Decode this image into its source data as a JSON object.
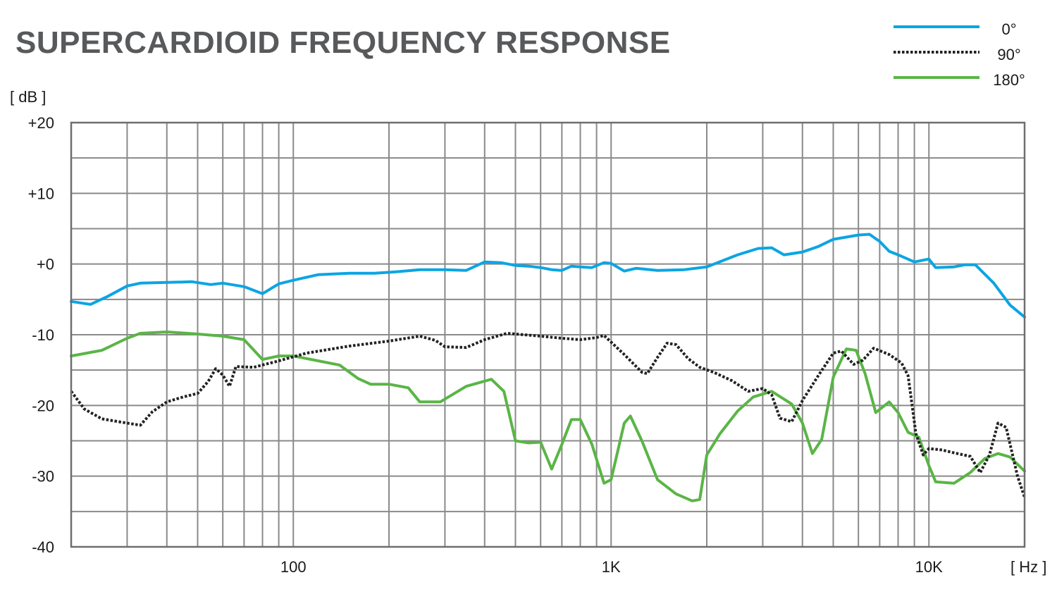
{
  "title": "SUPERCARDIOID FREQUENCY RESPONSE",
  "chart_data": {
    "type": "line",
    "title": "SUPERCARDIOID FREQUENCY RESPONSE",
    "ylabel": "[ dB ]",
    "xlabel": "[ Hz ]",
    "x_scale": "log",
    "xlim": [
      20,
      20000
    ],
    "ylim": [
      -40,
      20
    ],
    "grid": true,
    "legend_position": "top-right",
    "y_ticks": [
      {
        "value": 20,
        "label": "+20"
      },
      {
        "value": 10,
        "label": "+10"
      },
      {
        "value": 0,
        "label": "+0"
      },
      {
        "value": -10,
        "label": "-10"
      },
      {
        "value": -20,
        "label": "-20"
      },
      {
        "value": -30,
        "label": "-30"
      },
      {
        "value": -40,
        "label": "-40"
      }
    ],
    "x_ticks": [
      {
        "value": 100,
        "label": "100"
      },
      {
        "value": 1000,
        "label": "1K"
      },
      {
        "value": 10000,
        "label": "10K"
      }
    ],
    "series": [
      {
        "name": "0°",
        "color": "#0ba5e3",
        "dash": "solid",
        "points": [
          [
            20,
            -5.3
          ],
          [
            23,
            -5.7
          ],
          [
            26,
            -4.6
          ],
          [
            30,
            -3.1
          ],
          [
            33,
            -2.7
          ],
          [
            40,
            -2.6
          ],
          [
            48,
            -2.5
          ],
          [
            55,
            -2.9
          ],
          [
            60,
            -2.7
          ],
          [
            70,
            -3.2
          ],
          [
            80,
            -4.2
          ],
          [
            90,
            -2.8
          ],
          [
            100,
            -2.3
          ],
          [
            120,
            -1.5
          ],
          [
            150,
            -1.3
          ],
          [
            180,
            -1.3
          ],
          [
            210,
            -1.1
          ],
          [
            250,
            -0.8
          ],
          [
            300,
            -0.8
          ],
          [
            350,
            -0.9
          ],
          [
            400,
            0.3
          ],
          [
            450,
            0.2
          ],
          [
            500,
            -0.2
          ],
          [
            550,
            -0.3
          ],
          [
            600,
            -0.5
          ],
          [
            650,
            -0.8
          ],
          [
            700,
            -0.9
          ],
          [
            750,
            -0.3
          ],
          [
            800,
            -0.4
          ],
          [
            870,
            -0.5
          ],
          [
            950,
            0.2
          ],
          [
            1000,
            0.1
          ],
          [
            1100,
            -1.0
          ],
          [
            1200,
            -0.6
          ],
          [
            1400,
            -0.9
          ],
          [
            1700,
            -0.8
          ],
          [
            2000,
            -0.4
          ],
          [
            2500,
            1.3
          ],
          [
            2900,
            2.2
          ],
          [
            3200,
            2.3
          ],
          [
            3500,
            1.3
          ],
          [
            4000,
            1.7
          ],
          [
            4500,
            2.5
          ],
          [
            5000,
            3.5
          ],
          [
            6000,
            4.1
          ],
          [
            6500,
            4.2
          ],
          [
            7000,
            3.2
          ],
          [
            7500,
            1.8
          ],
          [
            8000,
            1.3
          ],
          [
            9000,
            0.3
          ],
          [
            10000,
            0.7
          ],
          [
            10500,
            -0.5
          ],
          [
            12000,
            -0.4
          ],
          [
            13000,
            -0.1
          ],
          [
            14000,
            -0.1
          ],
          [
            16000,
            -2.7
          ],
          [
            18000,
            -5.8
          ],
          [
            20000,
            -7.5
          ]
        ]
      },
      {
        "name": "90°",
        "color": "#222222",
        "dash": "dotted",
        "points": [
          [
            20,
            -18.0
          ],
          [
            22,
            -20.5
          ],
          [
            25,
            -21.9
          ],
          [
            30,
            -22.5
          ],
          [
            33,
            -22.8
          ],
          [
            36,
            -20.9
          ],
          [
            40,
            -19.5
          ],
          [
            45,
            -18.8
          ],
          [
            50,
            -18.3
          ],
          [
            54,
            -16.6
          ],
          [
            57,
            -14.8
          ],
          [
            60,
            -15.7
          ],
          [
            63,
            -17.3
          ],
          [
            66,
            -14.5
          ],
          [
            75,
            -14.6
          ],
          [
            90,
            -13.7
          ],
          [
            110,
            -12.6
          ],
          [
            150,
            -11.6
          ],
          [
            200,
            -10.9
          ],
          [
            250,
            -10.2
          ],
          [
            280,
            -10.8
          ],
          [
            300,
            -11.7
          ],
          [
            350,
            -11.8
          ],
          [
            400,
            -10.7
          ],
          [
            470,
            -9.8
          ],
          [
            600,
            -10.2
          ],
          [
            700,
            -10.5
          ],
          [
            800,
            -10.7
          ],
          [
            900,
            -10.4
          ],
          [
            950,
            -10.1
          ],
          [
            1100,
            -12.8
          ],
          [
            1250,
            -15.3
          ],
          [
            1300,
            -15.5
          ],
          [
            1400,
            -13.2
          ],
          [
            1500,
            -11.2
          ],
          [
            1600,
            -11.4
          ],
          [
            1750,
            -13.4
          ],
          [
            1900,
            -14.6
          ],
          [
            2100,
            -15.3
          ],
          [
            2400,
            -16.5
          ],
          [
            2700,
            -18.0
          ],
          [
            3000,
            -17.6
          ],
          [
            3200,
            -18.5
          ],
          [
            3400,
            -21.8
          ],
          [
            3700,
            -22.3
          ],
          [
            4000,
            -19.3
          ],
          [
            4500,
            -15.7
          ],
          [
            5000,
            -12.6
          ],
          [
            5300,
            -12.3
          ],
          [
            5800,
            -14.2
          ],
          [
            6200,
            -13.6
          ],
          [
            6700,
            -11.9
          ],
          [
            7500,
            -12.8
          ],
          [
            8200,
            -14.0
          ],
          [
            8600,
            -15.8
          ],
          [
            9100,
            -24.0
          ],
          [
            9600,
            -27.0
          ],
          [
            10000,
            -26.1
          ],
          [
            11000,
            -26.3
          ],
          [
            12000,
            -26.7
          ],
          [
            13500,
            -27.2
          ],
          [
            14500,
            -29.5
          ],
          [
            15500,
            -27.0
          ],
          [
            16500,
            -22.5
          ],
          [
            17500,
            -23.1
          ],
          [
            19000,
            -30.0
          ],
          [
            20000,
            -33.0
          ]
        ]
      },
      {
        "name": "180°",
        "color": "#5ab546",
        "dash": "solid",
        "points": [
          [
            20,
            -13.0
          ],
          [
            25,
            -12.2
          ],
          [
            30,
            -10.5
          ],
          [
            33,
            -9.8
          ],
          [
            40,
            -9.6
          ],
          [
            50,
            -9.9
          ],
          [
            60,
            -10.2
          ],
          [
            70,
            -10.7
          ],
          [
            80,
            -13.5
          ],
          [
            90,
            -13.0
          ],
          [
            100,
            -13.0
          ],
          [
            120,
            -13.7
          ],
          [
            140,
            -14.3
          ],
          [
            160,
            -16.2
          ],
          [
            175,
            -17.0
          ],
          [
            200,
            -17.0
          ],
          [
            230,
            -17.5
          ],
          [
            250,
            -19.5
          ],
          [
            290,
            -19.5
          ],
          [
            350,
            -17.3
          ],
          [
            420,
            -16.3
          ],
          [
            460,
            -18.0
          ],
          [
            500,
            -25.0
          ],
          [
            550,
            -25.3
          ],
          [
            600,
            -25.2
          ],
          [
            650,
            -29.0
          ],
          [
            700,
            -25.5
          ],
          [
            750,
            -22.0
          ],
          [
            800,
            -22.0
          ],
          [
            870,
            -25.5
          ],
          [
            950,
            -31.0
          ],
          [
            1000,
            -30.5
          ],
          [
            1100,
            -22.5
          ],
          [
            1150,
            -21.5
          ],
          [
            1250,
            -25.0
          ],
          [
            1400,
            -30.5
          ],
          [
            1600,
            -32.5
          ],
          [
            1800,
            -33.5
          ],
          [
            1900,
            -33.3
          ],
          [
            2000,
            -27.0
          ],
          [
            2200,
            -24.0
          ],
          [
            2500,
            -20.8
          ],
          [
            2800,
            -18.8
          ],
          [
            3200,
            -18.0
          ],
          [
            3700,
            -19.8
          ],
          [
            4000,
            -22.5
          ],
          [
            4300,
            -26.8
          ],
          [
            4600,
            -24.8
          ],
          [
            5000,
            -16.0
          ],
          [
            5500,
            -12.0
          ],
          [
            5900,
            -12.2
          ],
          [
            6300,
            -15.5
          ],
          [
            6800,
            -21.0
          ],
          [
            7500,
            -19.5
          ],
          [
            8000,
            -21.0
          ],
          [
            8600,
            -23.8
          ],
          [
            9300,
            -24.5
          ],
          [
            10000,
            -28.5
          ],
          [
            10500,
            -30.8
          ],
          [
            12000,
            -31.0
          ],
          [
            13500,
            -29.5
          ],
          [
            15000,
            -27.5
          ],
          [
            16500,
            -26.8
          ],
          [
            18000,
            -27.3
          ],
          [
            20000,
            -29.3
          ]
        ]
      }
    ]
  }
}
